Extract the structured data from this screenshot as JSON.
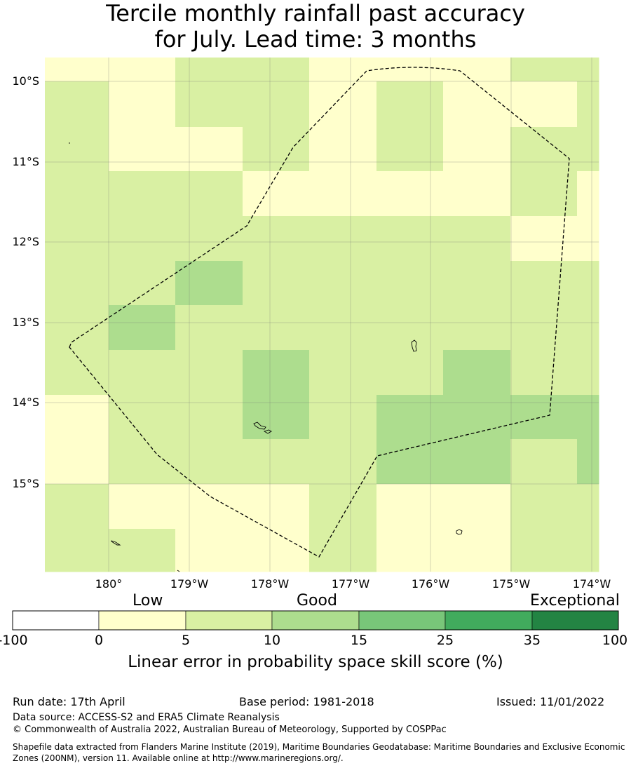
{
  "title_line1": "Tercile monthly rainfall past accuracy",
  "title_line2": "for July. Lead time: 3 months",
  "map": {
    "lat_labels": [
      "10°S",
      "11°S",
      "12°S",
      "13°S",
      "14°S",
      "15°S"
    ],
    "lon_labels": [
      "180°",
      "179°W",
      "178°W",
      "177°W",
      "176°W",
      "175°W",
      "174°W"
    ],
    "gridlines": true,
    "boundary_style": "dashed",
    "category_colors": [
      "#ffffff",
      "#ffffcc",
      "#d9f0a3",
      "#addd8e",
      "#78c679",
      "#41ab5d",
      "#238443"
    ]
  },
  "colorbar": {
    "category_labels": [
      "Low",
      "Good",
      "Exceptional"
    ],
    "ticks": [
      "-100",
      "0",
      "5",
      "10",
      "15",
      "25",
      "35",
      "100"
    ],
    "colors": [
      "#ffffff",
      "#ffffcc",
      "#d9f0a3",
      "#addd8e",
      "#78c679",
      "#41ab5d",
      "#238443"
    ],
    "axis_title": "Linear error in probability space skill score (%)"
  },
  "footer": {
    "run_date": "Run date: 17th April",
    "base_period": "Base period: 1981-2018",
    "issued": "Issued: 11/01/2022",
    "data_source": "Data source: ACCESS-S2 and ERA5 Climate Reanalysis",
    "copyright": "© Commonwealth of Australia 2022, Australian Bureau of Meteorology, Supported by COSPPac",
    "shapefile": "Shapefile data extracted from Flanders Marine Institute (2019), Maritime Boundaries Geodatabase: Maritime Boundaries and Exclusive Economic Zones (200NM), version 11. Available online at http://www.marineregions.org/."
  }
}
